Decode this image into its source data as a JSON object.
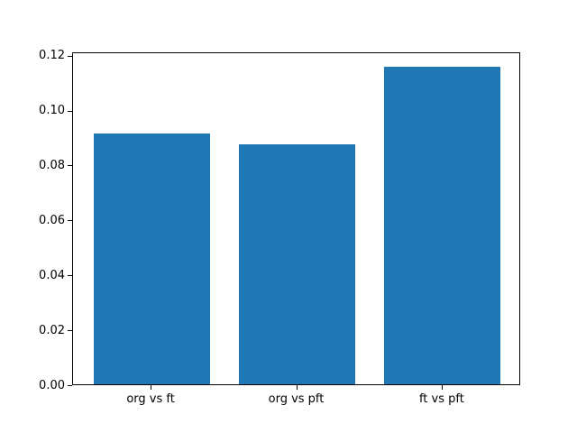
{
  "chart_data": {
    "type": "bar",
    "title": "",
    "xlabel": "",
    "ylabel": "",
    "categories": [
      "org vs ft",
      "org vs pft",
      "ft vs pft"
    ],
    "values": [
      0.0913,
      0.0873,
      0.1156
    ],
    "bar_color": "#1f77b4",
    "spine_color": "#000000",
    "tick_color": "#000000",
    "background_color": "#ffffff",
    "xlim": [
      -0.54,
      2.54
    ],
    "ylim": [
      0,
      0.1212
    ],
    "bar_width": 0.8,
    "ytick_values": [
      0.0,
      0.02,
      0.04,
      0.06,
      0.08,
      0.1,
      0.12
    ],
    "ytick_labels": [
      "0.00",
      "0.02",
      "0.04",
      "0.06",
      "0.08",
      "0.10",
      "0.12"
    ],
    "grid": false,
    "legend": null
  }
}
